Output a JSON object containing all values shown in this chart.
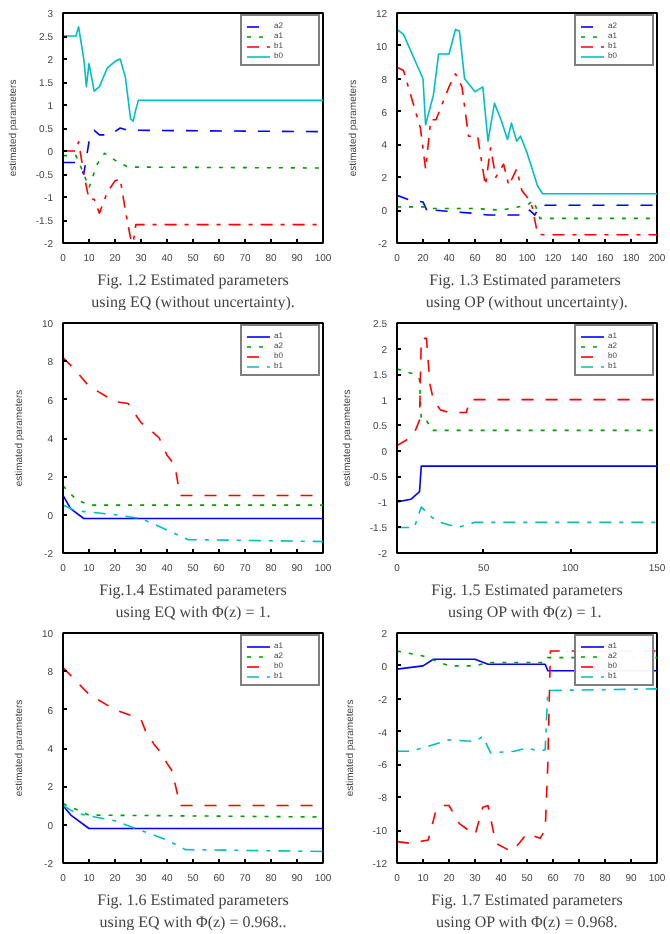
{
  "chart_data": [
    {
      "type": "line",
      "ylabel": "estimated parameters",
      "annotations": [
        "Fig. 1.2 Estimated parameters",
        "using EQ (without uncertainty)."
      ],
      "xlim": [
        0,
        100
      ],
      "xticks": [
        0,
        10,
        20,
        30,
        40,
        50,
        60,
        70,
        80,
        90,
        100
      ],
      "ylim": [
        -2,
        3
      ],
      "yticks": [
        -2,
        -1.5,
        -1,
        -0.5,
        0,
        0.5,
        1,
        1.5,
        2,
        2.5,
        3
      ],
      "legend": "top right",
      "grid": false,
      "series": [
        {
          "name": "a2",
          "color": "#0000ff",
          "line_style": "dashed",
          "x": [
            0,
            5,
            8,
            10,
            12,
            14,
            18,
            22,
            25,
            28,
            100
          ],
          "values": [
            -0.25,
            -0.25,
            -0.5,
            0.2,
            0.45,
            0.35,
            0.35,
            0.5,
            0.45,
            0.45,
            0.42
          ]
        },
        {
          "name": "a1",
          "color": "#00a000",
          "line_style": "dotted",
          "x": [
            0,
            5,
            8,
            10,
            13,
            16,
            20,
            25,
            28,
            100
          ],
          "values": [
            -0.1,
            -0.1,
            -0.5,
            -0.8,
            -0.3,
            -0.05,
            -0.2,
            -0.35,
            -0.35,
            -0.37
          ]
        },
        {
          "name": "b1",
          "color": "#ff0000",
          "line_style": "dashdot",
          "x": [
            0,
            5,
            6,
            8,
            10,
            12,
            14,
            17,
            20,
            22,
            24,
            26,
            27,
            28,
            100
          ],
          "values": [
            0,
            0,
            0.2,
            -0.5,
            -1.05,
            -1.05,
            -1.35,
            -0.9,
            -0.65,
            -0.6,
            -1.3,
            -1.9,
            -2.0,
            -1.6,
            -1.6
          ]
        },
        {
          "name": "b0",
          "color": "#00bfbf",
          "line_style": "solid",
          "x": [
            0,
            5,
            6,
            8,
            9,
            10,
            12,
            14,
            17,
            20,
            22,
            24,
            26,
            27,
            28,
            29,
            100
          ],
          "values": [
            2.5,
            2.5,
            2.7,
            2.0,
            1.4,
            1.9,
            1.3,
            1.4,
            1.8,
            1.95,
            2.0,
            1.6,
            0.7,
            0.65,
            0.9,
            1.1,
            1.1
          ]
        }
      ]
    },
    {
      "type": "line",
      "ylabel": "estimated parameters",
      "annotations": [
        "Fig.  1.3 Estimated parameters",
        "using OP (without uncertainty)."
      ],
      "xlim": [
        0,
        200
      ],
      "xticks": [
        0,
        20,
        40,
        60,
        80,
        100,
        120,
        140,
        160,
        180,
        200
      ],
      "ylim": [
        -2,
        12
      ],
      "yticks": [
        -2,
        0,
        2,
        4,
        6,
        8,
        10,
        12
      ],
      "legend": "top right",
      "grid": false,
      "series": [
        {
          "name": "a2",
          "color": "#0000ff",
          "line_style": "dashed",
          "x": [
            0,
            10,
            20,
            24,
            28,
            60,
            70,
            100,
            102,
            106,
            110,
            200
          ],
          "values": [
            0.9,
            0.6,
            0.5,
            -0.2,
            0,
            -0.2,
            -0.3,
            -0.3,
            0,
            -0.3,
            0.3,
            0.3
          ]
        },
        {
          "name": "a1",
          "color": "#00a000",
          "line_style": "dotted",
          "x": [
            0,
            20,
            25,
            60,
            80,
            100,
            105,
            110,
            200
          ],
          "values": [
            0.2,
            0.2,
            0.1,
            0.1,
            0,
            0.3,
            0.6,
            -0.5,
            -0.5
          ]
        },
        {
          "name": "b1",
          "color": "#ff0000",
          "line_style": "dashdot",
          "x": [
            0,
            5,
            18,
            22,
            26,
            30,
            40,
            45,
            50,
            55,
            62,
            68,
            72,
            76,
            82,
            86,
            92,
            96,
            100,
            104,
            108,
            112,
            200
          ],
          "values": [
            8.7,
            8.5,
            5,
            2.5,
            5.5,
            5.5,
            7.5,
            8.3,
            7.5,
            4.5,
            4.5,
            1.5,
            3.8,
            2,
            2.8,
            1.5,
            2.5,
            1.2,
            0.8,
            0.2,
            -1.4,
            -1.5,
            -1.5
          ]
        },
        {
          "name": "b0",
          "color": "#00bfbf",
          "line_style": "solid",
          "x": [
            0,
            5,
            20,
            22,
            28,
            32,
            40,
            45,
            48,
            52,
            60,
            66,
            70,
            75,
            80,
            85,
            88,
            92,
            95,
            100,
            104,
            108,
            112,
            200
          ],
          "values": [
            11,
            10.7,
            8,
            5.2,
            7,
            9.5,
            9.5,
            11,
            10.9,
            8,
            7.2,
            7.5,
            4.2,
            6.5,
            5.5,
            4.3,
            5.3,
            4.2,
            4.5,
            3.5,
            2.5,
            1.5,
            1,
            1
          ]
        }
      ]
    },
    {
      "type": "line",
      "ylabel": "estimated parameters",
      "annotations": [
        "Fig.1.4 Estimated parameters",
        "using EQ with Φ(z) = 1."
      ],
      "xlim": [
        0,
        100
      ],
      "xticks": [
        0,
        10,
        20,
        30,
        40,
        50,
        60,
        70,
        80,
        90,
        100
      ],
      "ylim": [
        -2,
        10
      ],
      "yticks": [
        -2,
        0,
        2,
        4,
        6,
        8,
        10
      ],
      "legend": "top right",
      "grid": false,
      "series": [
        {
          "name": "a1",
          "color": "#0000ff",
          "line_style": "solid",
          "x": [
            0,
            3,
            8,
            100
          ],
          "values": [
            1,
            0.3,
            -0.2,
            -0.2
          ]
        },
        {
          "name": "a2",
          "color": "#00a000",
          "line_style": "dotted",
          "x": [
            0,
            5,
            10,
            100
          ],
          "values": [
            1.5,
            0.8,
            0.5,
            0.5
          ]
        },
        {
          "name": "b0",
          "color": "#ff0000",
          "line_style": "dashed",
          "x": [
            0,
            5,
            10,
            20,
            25,
            30,
            33,
            37,
            40,
            43,
            45,
            100
          ],
          "values": [
            8.2,
            7.5,
            6.7,
            5.9,
            5.8,
            4.8,
            4.5,
            4,
            3.1,
            2.6,
            1,
            1
          ]
        },
        {
          "name": "b1",
          "color": "#00bfbf",
          "line_style": "dashdot",
          "x": [
            0,
            5,
            20,
            30,
            40,
            48,
            100
          ],
          "values": [
            0.5,
            0.2,
            0,
            -0.2,
            -0.8,
            -1.3,
            -1.4
          ]
        }
      ]
    },
    {
      "type": "line",
      "ylabel": "estimated parameters",
      "annotations": [
        "Fig. 1.5 Estimated parameters",
        "using OP with  Φ(z) = 1."
      ],
      "xlim": [
        0,
        150
      ],
      "xticks": [
        0,
        50,
        100,
        150
      ],
      "ylim": [
        -2,
        2.5
      ],
      "yticks": [
        -2,
        -1.5,
        -1,
        -0.5,
        0,
        0.5,
        1,
        1.5,
        2,
        2.5
      ],
      "legend": "top right",
      "grid": false,
      "series": [
        {
          "name": "a1",
          "color": "#0000ff",
          "line_style": "solid",
          "x": [
            0,
            8,
            13,
            14,
            150
          ],
          "values": [
            -1,
            -0.95,
            -0.8,
            -0.3,
            -0.3
          ]
        },
        {
          "name": "a2",
          "color": "#00a000",
          "line_style": "dotted",
          "x": [
            0,
            10,
            13,
            14,
            17,
            20,
            150
          ],
          "values": [
            1.6,
            1.5,
            1.4,
            0.6,
            0.6,
            0.4,
            0.4
          ]
        },
        {
          "name": "b0",
          "color": "#ff0000",
          "line_style": "dashed",
          "x": [
            0,
            5,
            10,
            13,
            14,
            17,
            19,
            21,
            25,
            30,
            40,
            42,
            150
          ],
          "values": [
            0.1,
            0.2,
            0.35,
            0.6,
            2.2,
            2.2,
            1.3,
            1,
            0.8,
            0.75,
            0.75,
            1,
            1
          ]
        },
        {
          "name": "b1",
          "color": "#00bfbf",
          "line_style": "dashdot",
          "x": [
            0,
            10,
            14,
            20,
            25,
            35,
            45,
            150
          ],
          "values": [
            -1.5,
            -1.5,
            -1.1,
            -1.3,
            -1.4,
            -1.5,
            -1.4,
            -1.4
          ]
        }
      ]
    },
    {
      "type": "line",
      "ylabel": "estimated parameters",
      "annotations": [
        "Fig. 1.6 Estimated parameters",
        "using EQ with Φ(z) = 0.968.."
      ],
      "xlim": [
        0,
        100
      ],
      "xticks": [
        0,
        10,
        20,
        30,
        40,
        50,
        60,
        70,
        80,
        90,
        100
      ],
      "ylim": [
        -2,
        10
      ],
      "yticks": [
        -2,
        0,
        2,
        4,
        6,
        8,
        10
      ],
      "legend": "top right",
      "grid": false,
      "series": [
        {
          "name": "a1",
          "color": "#0000ff",
          "line_style": "solid",
          "x": [
            0,
            3,
            10,
            100
          ],
          "values": [
            1,
            0.5,
            -0.2,
            -0.2
          ]
        },
        {
          "name": "a2",
          "color": "#00a000",
          "line_style": "dotted",
          "x": [
            0,
            5,
            10,
            100
          ],
          "values": [
            1.1,
            0.8,
            0.5,
            0.4
          ]
        },
        {
          "name": "b0",
          "color": "#ff0000",
          "line_style": "dashed",
          "x": [
            0,
            10,
            20,
            30,
            32,
            35,
            38,
            40,
            42,
            45,
            100
          ],
          "values": [
            8.2,
            6.8,
            6,
            5.5,
            4.8,
            4.2,
            3.7,
            3.2,
            2.8,
            1,
            1
          ]
        },
        {
          "name": "b1",
          "color": "#00bfbf",
          "line_style": "dashdot",
          "x": [
            0,
            5,
            20,
            30,
            40,
            47,
            100
          ],
          "values": [
            1,
            0.6,
            0.2,
            -0.3,
            -0.8,
            -1.3,
            -1.4
          ]
        }
      ]
    },
    {
      "type": "line",
      "ylabel": "estimated parameters",
      "annotations": [
        "Fig. 1.7 Estimated parameters",
        "using OP with Φ(z) = 0.968."
      ],
      "xlim": [
        0,
        100
      ],
      "xticks": [
        0,
        10,
        20,
        30,
        40,
        50,
        60,
        70,
        80,
        90,
        100
      ],
      "ylim": [
        -12,
        2
      ],
      "yticks": [
        -12,
        -10,
        -8,
        -6,
        -4,
        -2,
        0,
        2
      ],
      "legend": "top right",
      "grid": false,
      "series": [
        {
          "name": "a1",
          "color": "#0000ff",
          "line_style": "solid",
          "x": [
            0,
            10,
            14,
            30,
            35,
            57,
            58,
            100
          ],
          "values": [
            -0.2,
            0,
            0.4,
            0.4,
            0.1,
            0.1,
            -0.3,
            -0.3
          ]
        },
        {
          "name": "a2",
          "color": "#00a000",
          "line_style": "dotted",
          "x": [
            0,
            10,
            20,
            30,
            35,
            57,
            58,
            100
          ],
          "values": [
            0.9,
            0.6,
            0,
            0,
            0.2,
            0.2,
            0.5,
            0.5
          ]
        },
        {
          "name": "b0",
          "color": "#ff0000",
          "line_style": "dashed",
          "x": [
            0,
            5,
            12,
            15,
            17,
            20,
            24,
            30,
            33,
            35,
            38,
            44,
            47,
            50,
            55,
            57,
            58,
            59,
            100
          ],
          "values": [
            -10.7,
            -10.8,
            -10.6,
            -8.8,
            -8.5,
            -8.5,
            -9.6,
            -10.3,
            -8.6,
            -8.5,
            -10.8,
            -11.3,
            -10.8,
            -10.2,
            -10.5,
            -10,
            -6,
            0.9,
            0.9
          ]
        },
        {
          "name": "b1",
          "color": "#00bfbf",
          "line_style": "dashdot",
          "x": [
            0,
            5,
            12,
            20,
            30,
            33,
            36,
            45,
            50,
            55,
            57,
            58,
            100
          ],
          "values": [
            -5.2,
            -5.2,
            -4.9,
            -4.5,
            -4.6,
            -4.3,
            -5.3,
            -5.2,
            -5,
            -5.2,
            -5.1,
            -1.5,
            -1.4
          ]
        }
      ]
    }
  ]
}
